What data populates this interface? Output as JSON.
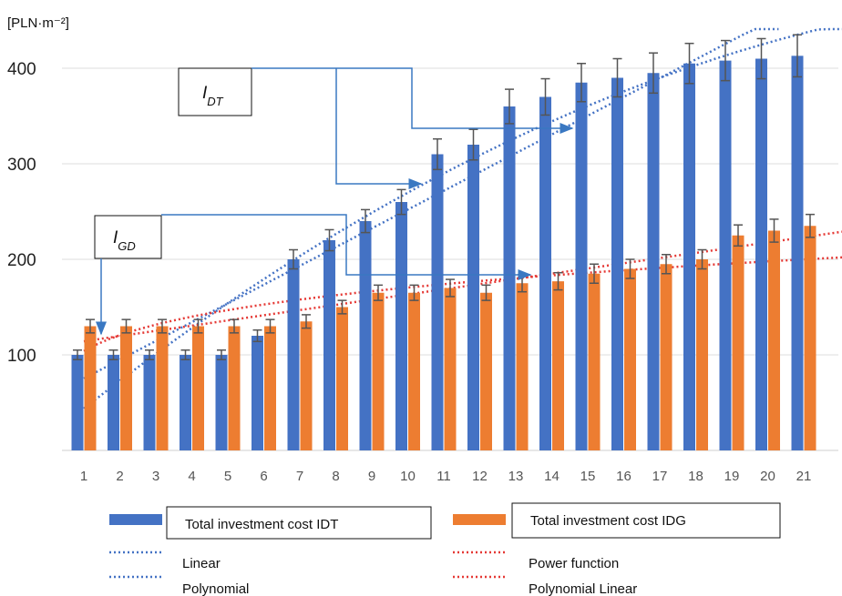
{
  "chart_data": {
    "type": "bar",
    "y_unit": "[PLN·m⁻²]",
    "categories": [
      "1",
      "2",
      "3",
      "4",
      "5",
      "6",
      "7",
      "8",
      "9",
      "10",
      "11",
      "12",
      "13",
      "14",
      "15",
      "16",
      "17",
      "18",
      "19",
      "20",
      "21"
    ],
    "ylim": [
      0,
      420
    ],
    "yticks": [
      100,
      200,
      300,
      400
    ],
    "grid": true,
    "series": [
      {
        "name": "Total investment cost IDT",
        "color": "#4472C4",
        "values": [
          100,
          100,
          100,
          100,
          100,
          120,
          200,
          220,
          240,
          260,
          310,
          320,
          360,
          370,
          385,
          390,
          395,
          405,
          408,
          410,
          413
        ],
        "errors": [
          5,
          5,
          5,
          5,
          5,
          6,
          10,
          11,
          12,
          13,
          16,
          16,
          18,
          19,
          20,
          20,
          21,
          21,
          21,
          21,
          22
        ]
      },
      {
        "name": "Total investment cost IDG",
        "color": "#ED7D31",
        "values": [
          130,
          130,
          130,
          130,
          130,
          130,
          135,
          150,
          165,
          165,
          170,
          165,
          175,
          177,
          185,
          190,
          195,
          200,
          225,
          230,
          235
        ],
        "errors": [
          7,
          7,
          7,
          7,
          7,
          7,
          7,
          7,
          8,
          8,
          9,
          8,
          9,
          9,
          10,
          10,
          10,
          10,
          11,
          12,
          12
        ]
      }
    ],
    "trendlines": [
      {
        "name": "Linear",
        "color": "#4472C4",
        "style": "dotted"
      },
      {
        "name": "Polynomial",
        "color": "#4472C4",
        "style": "dotted"
      },
      {
        "name": "Power function",
        "color": "#E53935",
        "style": "dotted"
      },
      {
        "name": "Polynomial Linear",
        "color": "#E53935",
        "style": "dotted"
      }
    ],
    "annotations": [
      {
        "label_main": "I",
        "label_sub": "DT",
        "points_to": "Total investment cost IDT"
      },
      {
        "label_main": "I",
        "label_sub": "GD",
        "points_to": "Total investment cost IDG"
      }
    ],
    "legend_placement": "bottom"
  }
}
